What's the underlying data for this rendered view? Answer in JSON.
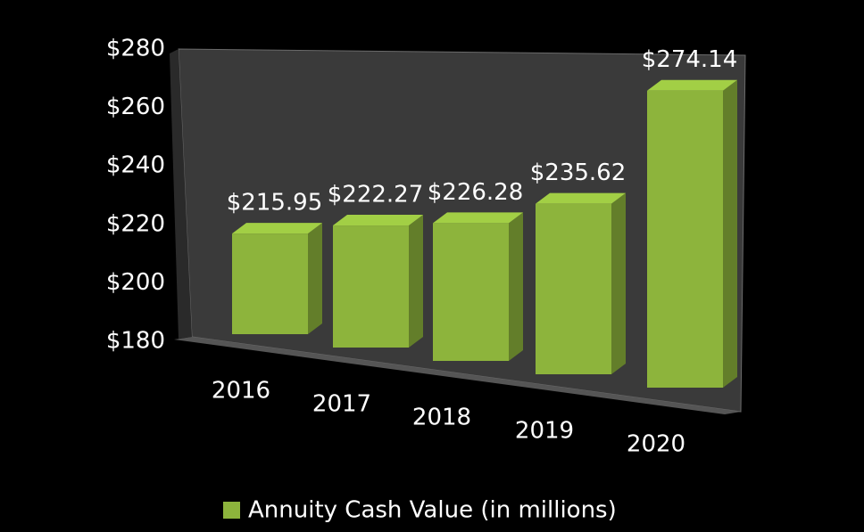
{
  "chart_data": {
    "type": "bar3d",
    "categories": [
      "2016",
      "2017",
      "2018",
      "2019",
      "2020"
    ],
    "series": [
      {
        "name": "Annuity Cash Value (in millions)",
        "color": "#8db43c",
        "values": [
          215.95,
          222.27,
          226.28,
          235.62,
          274.14
        ],
        "value_labels": [
          "$215.95",
          "$222.27",
          "$226.28",
          "$235.62",
          "$274.14"
        ]
      }
    ],
    "ylim": [
      180,
      280
    ],
    "yticks": [
      {
        "value": 180,
        "label": "$180"
      },
      {
        "value": 200,
        "label": "$200"
      },
      {
        "value": 220,
        "label": "$220"
      },
      {
        "value": 240,
        "label": "$240"
      },
      {
        "value": 260,
        "label": "$260"
      },
      {
        "value": 280,
        "label": "$280"
      }
    ],
    "legend": "bottom"
  }
}
